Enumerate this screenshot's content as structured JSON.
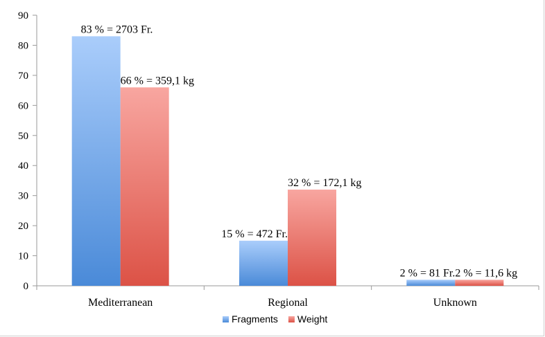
{
  "chart_data": {
    "type": "bar",
    "title": "",
    "xlabel": "",
    "ylabel": "",
    "categories": [
      "Mediterranean",
      "Regional",
      "Unknown"
    ],
    "series": [
      {
        "name": "Fragments",
        "color": "#4f8fdc",
        "values": [
          83,
          15,
          2
        ],
        "labels": [
          "83 % = 2703 Fr.",
          "15 % = 472 Fr.",
          "2 % = 81 Fr."
        ]
      },
      {
        "name": "Weight",
        "color": "#e05a4d",
        "values": [
          66,
          32,
          2
        ],
        "labels": [
          "66 % = 359,1 kg",
          "32 % = 172,1 kg",
          "2 % = 11,6 kg"
        ]
      }
    ],
    "ylim": [
      0,
      90
    ],
    "yticks": [
      0,
      10,
      20,
      30,
      40,
      50,
      60,
      70,
      80,
      90
    ],
    "grid": false,
    "legend": "bottom"
  }
}
